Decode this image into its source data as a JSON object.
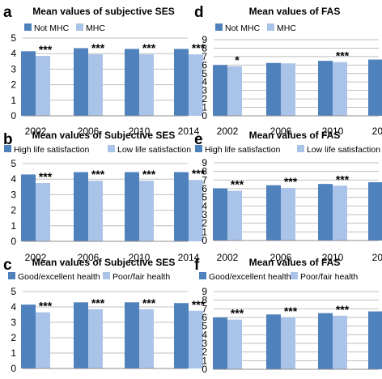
{
  "colors": {
    "series1": "#4f81bd",
    "series2": "#a9c4e8",
    "grid": "#bfbfbf",
    "text": "#000000"
  },
  "chart_data": [
    {
      "panel_letter": "a",
      "type": "bar",
      "title": "Mean values of subjective SES",
      "categories": [
        "2002",
        "2006",
        "2010",
        "2014"
      ],
      "series": [
        {
          "name": "Not MHC",
          "values": [
            4.15,
            4.35,
            4.3,
            4.3
          ]
        },
        {
          "name": "MHC",
          "values": [
            3.85,
            3.95,
            3.95,
            3.95
          ]
        }
      ],
      "annotations": [
        "***",
        "***",
        "***",
        "***"
      ],
      "ylim": [
        0,
        5
      ],
      "yticks": [
        "0",
        "1",
        "2",
        "3",
        "4",
        "5"
      ],
      "grid": true,
      "legend": "top-center"
    },
    {
      "panel_letter": "b",
      "type": "bar",
      "title": "Mean values of Subjective SES",
      "categories": [
        "2002",
        "2006",
        "2010",
        "2014"
      ],
      "series": [
        {
          "name": "High life satisfaction",
          "values": [
            4.3,
            4.45,
            4.45,
            4.45
          ]
        },
        {
          "name": "Low life satisfaction",
          "values": [
            3.75,
            3.9,
            3.9,
            3.95
          ]
        }
      ],
      "annotations": [
        "***",
        "***",
        "***",
        "***"
      ],
      "ylim": [
        0,
        5
      ],
      "yticks": [
        "0",
        "1",
        "2",
        "3",
        "4",
        "5"
      ],
      "grid": true,
      "legend": "top-center"
    },
    {
      "panel_letter": "c",
      "type": "bar",
      "title": "Mean values of Subjective SES",
      "categories": [
        "2002",
        "2006",
        "2010",
        "2014"
      ],
      "series": [
        {
          "name": "Good/excellent health",
          "values": [
            4.15,
            4.3,
            4.3,
            4.25
          ]
        },
        {
          "name": "Poor/fair health",
          "values": [
            3.65,
            3.85,
            3.85,
            3.75
          ]
        }
      ],
      "annotations": [
        "***",
        "***",
        "***",
        "***"
      ],
      "ylim": [
        0,
        5
      ],
      "yticks": [
        "0",
        "1",
        "2",
        "3",
        "4",
        "5"
      ],
      "grid": true,
      "legend": "top-center"
    },
    {
      "panel_letter": "d",
      "type": "bar",
      "title": "Mean values of FAS",
      "categories": [
        "2002",
        "2006",
        "2010",
        "2014"
      ],
      "series": [
        {
          "name": "Not MHC",
          "values": [
            6.0,
            6.25,
            6.5,
            6.65
          ]
        },
        {
          "name": "MHC",
          "values": [
            5.85,
            6.2,
            6.35,
            6.45
          ]
        }
      ],
      "annotations": [
        "*",
        "",
        "***",
        "**"
      ],
      "ylim": [
        0,
        9
      ],
      "yticks": [
        "0",
        "1",
        "2",
        "3",
        "4",
        "5",
        "6",
        "7",
        "8",
        "9"
      ],
      "grid": true,
      "legend": "top-center"
    },
    {
      "panel_letter": "e",
      "type": "bar",
      "title": "Mean values of FAS",
      "categories": [
        "2002",
        "2006",
        "2010",
        "2014"
      ],
      "series": [
        {
          "name": "High life satisfaction",
          "values": [
            6.05,
            6.4,
            6.55,
            6.75
          ]
        },
        {
          "name": "Low life satisfaction",
          "values": [
            5.75,
            6.1,
            6.35,
            6.45
          ]
        }
      ],
      "annotations": [
        "***",
        "***",
        "***",
        "***"
      ],
      "ylim": [
        0,
        9
      ],
      "yticks": [
        "0",
        "1",
        "2",
        "3",
        "4",
        "5",
        "6",
        "7",
        "8",
        "9"
      ],
      "grid": true,
      "legend": "top-center"
    },
    {
      "panel_letter": "f",
      "type": "bar",
      "title": "Mean values of FAS",
      "categories": [
        "2002",
        "2006",
        "2010",
        "2014"
      ],
      "series": [
        {
          "name": "Good/excellent health",
          "values": [
            6.0,
            6.35,
            6.5,
            6.7
          ]
        },
        {
          "name": "Poor/fair health",
          "values": [
            5.75,
            6.0,
            6.2,
            6.35
          ]
        }
      ],
      "annotations": [
        "***",
        "***",
        "***",
        "***"
      ],
      "ylim": [
        0,
        9
      ],
      "yticks": [
        "0",
        "1",
        "2",
        "3",
        "4",
        "5",
        "6",
        "7",
        "8",
        "9"
      ],
      "grid": true,
      "legend": "top-center"
    }
  ]
}
